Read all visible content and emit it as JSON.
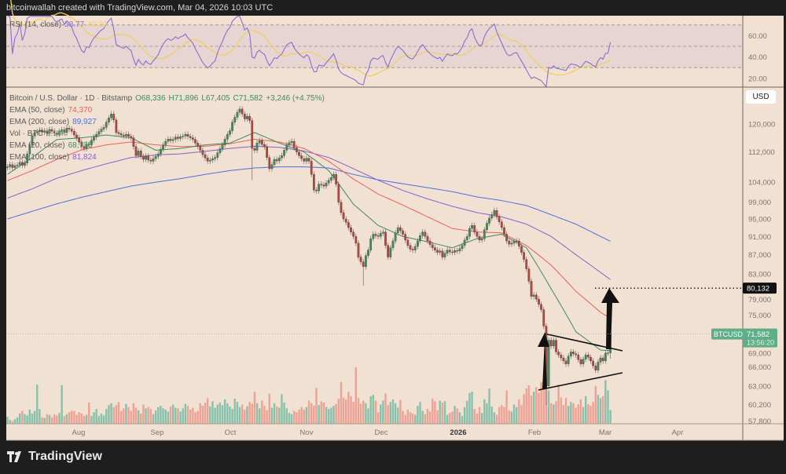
{
  "header": {
    "attribution": "bitcoinwallah created with TradingView.com, Mar 04, 2026 10:03 UTC"
  },
  "brand": {
    "name": "TradingView"
  },
  "price_axis": {
    "currency_button": "USD",
    "ticks": [
      "120,000",
      "112,000",
      "104,000",
      "99,000",
      "95,000",
      "91,000",
      "87,000",
      "83,000",
      "79,000",
      "75,000",
      "69,000",
      "66,000",
      "63,000",
      "60,200",
      "57,800"
    ],
    "scale": "log"
  },
  "rsi_axis": {
    "ticks": [
      "60.00",
      "40.00",
      "20.00"
    ]
  },
  "time_axis": {
    "ticks": [
      "Aug",
      "Sep",
      "Oct",
      "Nov",
      "Dec",
      "2026",
      "Feb",
      "Mar",
      "Apr"
    ]
  },
  "legend": {
    "symbol": "Bitcoin / U.S. Dollar · 1D · Bitstamp",
    "open": "O68,336",
    "high": "H71,896",
    "low": "L67,405",
    "close": "C71,582",
    "change": "+3,246 (+4.75%)",
    "ema50_label": "EMA (50, close)",
    "ema50_value": "74,370",
    "ema200_label": "EMA (200, close)",
    "ema200_value": "89,927",
    "vol_label": "Vol · BTC",
    "vol_value": "2.13K",
    "ema20_label": "EMA (20, close)",
    "ema20_value": "68,730",
    "ema100_label": "EMA (100, close)",
    "ema100_value": "81,824",
    "rsi_label": "RSI (14, close)",
    "rsi_value": "53.77",
    "rsi_ma_value": "40.90"
  },
  "price_labels": {
    "symbol_tag": "BTCUSD",
    "last_price": "71,582",
    "countdown": "13:56:20",
    "target_price": "80,132"
  },
  "colors": {
    "background": "#f1e1d2",
    "up": "#3d8c5c",
    "down": "#b8453b",
    "vol_up": "#86c2ab",
    "vol_down": "#eea195",
    "ema20": "#3d8c5c",
    "ema50": "#e8625a",
    "ema100": "#8c5fc8",
    "ema200": "#4b6fe0",
    "rsi": "#8a6dd0",
    "rsi_ma": "#f0cf62",
    "last_price": "#5fae88"
  },
  "chart_data": {
    "type": "candlestick",
    "symbol": "BTCUSD",
    "interval": "1D",
    "y_scale": "log",
    "ylim": [
      57800,
      128000
    ],
    "last_candle": {
      "open": 68336,
      "high": 71896,
      "low": 67405,
      "close": 71582
    },
    "close": [
      108000,
      108600,
      107800,
      108300,
      108500,
      109200,
      108400,
      109000,
      111500,
      114000,
      116500,
      117500,
      117800,
      118200,
      117600,
      118000,
      117200,
      118400,
      117900,
      117300,
      117000,
      117800,
      118300,
      117500,
      118800,
      118500,
      117900,
      116800,
      116000,
      114800,
      113500,
      113000,
      114200,
      114000,
      115300,
      116200,
      117000,
      117800,
      118500,
      119000,
      120500,
      121800,
      123000,
      121200,
      117500,
      117200,
      116800,
      116500,
      117000,
      116400,
      116000,
      113500,
      111000,
      112300,
      110800,
      110000,
      110900,
      109800,
      109500,
      110200,
      110800,
      111500,
      112800,
      114000,
      115000,
      115600,
      115200,
      115500,
      116200,
      115800,
      116300,
      116500,
      117000,
      116400,
      116000,
      115500,
      114500,
      113600,
      112500,
      111300,
      110400,
      109500,
      109800,
      110200,
      110500,
      111800,
      112900,
      114000,
      115600,
      117000,
      118000,
      120500,
      122000,
      123500,
      124500,
      123000,
      121500,
      122300,
      121000,
      113000,
      112500,
      114500,
      115200,
      114100,
      113500,
      110500,
      107500,
      108600,
      110000,
      109600,
      110400,
      111000,
      112500,
      114000,
      114600,
      115000,
      113200,
      112000,
      111000,
      110200,
      109500,
      110300,
      109500,
      106000,
      102000,
      101800,
      103500,
      103300,
      103000,
      103800,
      104500,
      105200,
      106000,
      103500,
      99000,
      96500,
      95000,
      94200,
      93000,
      92000,
      91000,
      89500,
      86500,
      85500,
      84500,
      86800,
      88000,
      90500,
      91500,
      91200,
      91000,
      91700,
      92000,
      89000,
      86500,
      88500,
      90000,
      91800,
      93000,
      92300,
      91500,
      90200,
      89000,
      88200,
      88000,
      88800,
      90000,
      91200,
      92000,
      91000,
      90000,
      89200,
      88500,
      88000,
      87500,
      87800,
      86500,
      87300,
      88000,
      87600,
      87500,
      87900,
      87800,
      88300,
      89000,
      90200,
      91000,
      92800,
      93500,
      92000,
      91000,
      90200,
      90500,
      92500,
      94000,
      95200,
      96000,
      97000,
      95500,
      94300,
      93000,
      91500,
      90000,
      89300,
      89500,
      89900,
      90000,
      88800,
      87500,
      86000,
      84000,
      81500,
      78500,
      78800,
      78000,
      77000,
      76000,
      73000,
      63000,
      70500,
      69500,
      70500,
      68500,
      68000,
      67500,
      67000,
      66500,
      67800,
      68500,
      68200,
      68000,
      67200,
      66500,
      67300,
      68000,
      67600,
      67000,
      66200,
      65500,
      66800,
      67500,
      67000,
      68300,
      68336,
      71582
    ],
    "volume_k_btc": [
      1.1,
      0.6,
      0.4,
      0.7,
      1.0,
      1.6,
      2.0,
      1.5,
      1.3,
      2.2,
      1.6,
      2.0,
      6.1,
      2.3,
      1.0,
      0.9,
      1.5,
      1.4,
      1.0,
      1.5,
      1.3,
      1.7,
      6.0,
      1.2,
      1.5,
      1.8,
      2.0,
      2.0,
      1.4,
      1.8,
      1.6,
      1.2,
      1.4,
      3.3,
      1.2,
      1.8,
      2.3,
      1.2,
      1.6,
      1.3,
      2.3,
      2.9,
      3.2,
      2.6,
      2.9,
      3.4,
      2.0,
      2.4,
      3.1,
      2.6,
      2.0,
      3.2,
      2.5,
      2.1,
      1.6,
      3.0,
      2.4,
      2.6,
      2.3,
      1.5,
      2.1,
      2.6,
      2.8,
      2.4,
      2.2,
      1.9,
      2.7,
      3.0,
      2.5,
      2.4,
      1.9,
      2.4,
      3.1,
      2.8,
      2.2,
      2.5,
      1.8,
      2.0,
      3.2,
      2.8,
      3.3,
      4.0,
      2.7,
      3.5,
      2.5,
      3.0,
      3.3,
      2.9,
      3.8,
      3.2,
      2.7,
      2.3,
      3.9,
      3.4,
      2.6,
      3.0,
      2.2,
      2.7,
      3.4,
      3.1,
      5.0,
      3.2,
      2.4,
      3.6,
      2.8,
      2.1,
      4.7,
      2.5,
      3.2,
      2.7,
      2.5,
      4.6,
      3.3,
      2.4,
      1.7,
      1.5,
      2.0,
      1.8,
      2.2,
      2.6,
      2.2,
      2.6,
      3.6,
      3.2,
      2.8,
      5.6,
      2.9,
      3.5,
      3.3,
      2.6,
      2.3,
      2.5,
      2.8,
      3.1,
      3.9,
      6.5,
      4.1,
      3.8,
      5.0,
      4.3,
      3.4,
      8.8,
      4.0,
      3.1,
      3.6,
      3.2,
      2.4,
      4.3,
      4.5,
      3.6,
      1.8,
      3.0,
      3.6,
      4.7,
      2.9,
      3.4,
      3.8,
      3.2,
      2.5,
      3.7,
      2.0,
      1.4,
      2.2,
      1.8,
      1.6,
      1.4,
      2.8,
      3.4,
      2.0,
      1.5,
      2.3,
      1.9,
      3.9,
      3.5,
      2.1,
      3.6,
      3.3,
      3.5,
      1.4,
      1.7,
      1.9,
      2.8,
      2.4,
      1.8,
      1.2,
      2.6,
      3.6,
      4.8,
      5.0,
      2.3,
      1.6,
      2.6,
      1.7,
      3.8,
      3.2,
      5.5,
      2.7,
      1.8,
      1.4,
      2.6,
      2.9,
      2.6,
      5.2,
      2.1,
      1.9,
      3.0,
      2.6,
      3.8,
      2.9,
      4.6,
      5.5,
      6.0,
      4.4,
      5.0,
      5.7,
      4.8,
      6.5,
      7.0,
      6.8,
      5.2,
      3.2,
      3.0,
      3.5,
      6.1,
      4.1,
      2.9,
      4.0,
      2.8,
      3.4,
      3.2,
      2.5,
      3.0,
      3.8,
      2.6,
      4.3,
      3.0,
      2.8,
      3.4,
      5.9,
      4.5,
      4.0,
      4.3,
      6.8,
      5.2,
      2.13
    ],
    "ema_series_sampled_every_10_candles_plus_last": {
      "ema20": [
        106000,
        110500,
        115500,
        116000,
        116800,
        116000,
        112500,
        113000,
        114000,
        114500,
        117500,
        114500,
        112000,
        107000,
        98500,
        93500,
        91000,
        89800,
        88500,
        90500,
        91500,
        88500,
        80000,
        72000,
        68800,
        68730
      ],
      "ema50": [
        104400,
        107000,
        110000,
        112600,
        114000,
        114800,
        114000,
        113500,
        113600,
        114300,
        115600,
        114800,
        113000,
        109500,
        104800,
        101000,
        98300,
        95500,
        92800,
        92000,
        91800,
        89000,
        84800,
        79500,
        75500,
        74370
      ],
      "ema100": [
        100000,
        102300,
        105000,
        107000,
        108800,
        110500,
        111200,
        111500,
        112200,
        113000,
        113600,
        113300,
        112300,
        110500,
        107500,
        104500,
        101900,
        99800,
        98000,
        96500,
        95500,
        93800,
        91000,
        87000,
        83300,
        81824
      ],
      "ema200": [
        95000,
        96800,
        98600,
        100200,
        101600,
        103000,
        104000,
        104900,
        106000,
        107000,
        107700,
        108000,
        108000,
        107700,
        106000,
        104600,
        103600,
        102600,
        101600,
        100300,
        99400,
        98200,
        96000,
        93800,
        91000,
        89927
      ]
    },
    "rsi": {
      "period": 14,
      "last": 53.77,
      "levels": [
        70,
        50,
        30
      ],
      "ylim": [
        10,
        80
      ]
    },
    "annotations": {
      "target": 80132,
      "pattern": "symmetrical triangle breakout with up arrow"
    }
  }
}
